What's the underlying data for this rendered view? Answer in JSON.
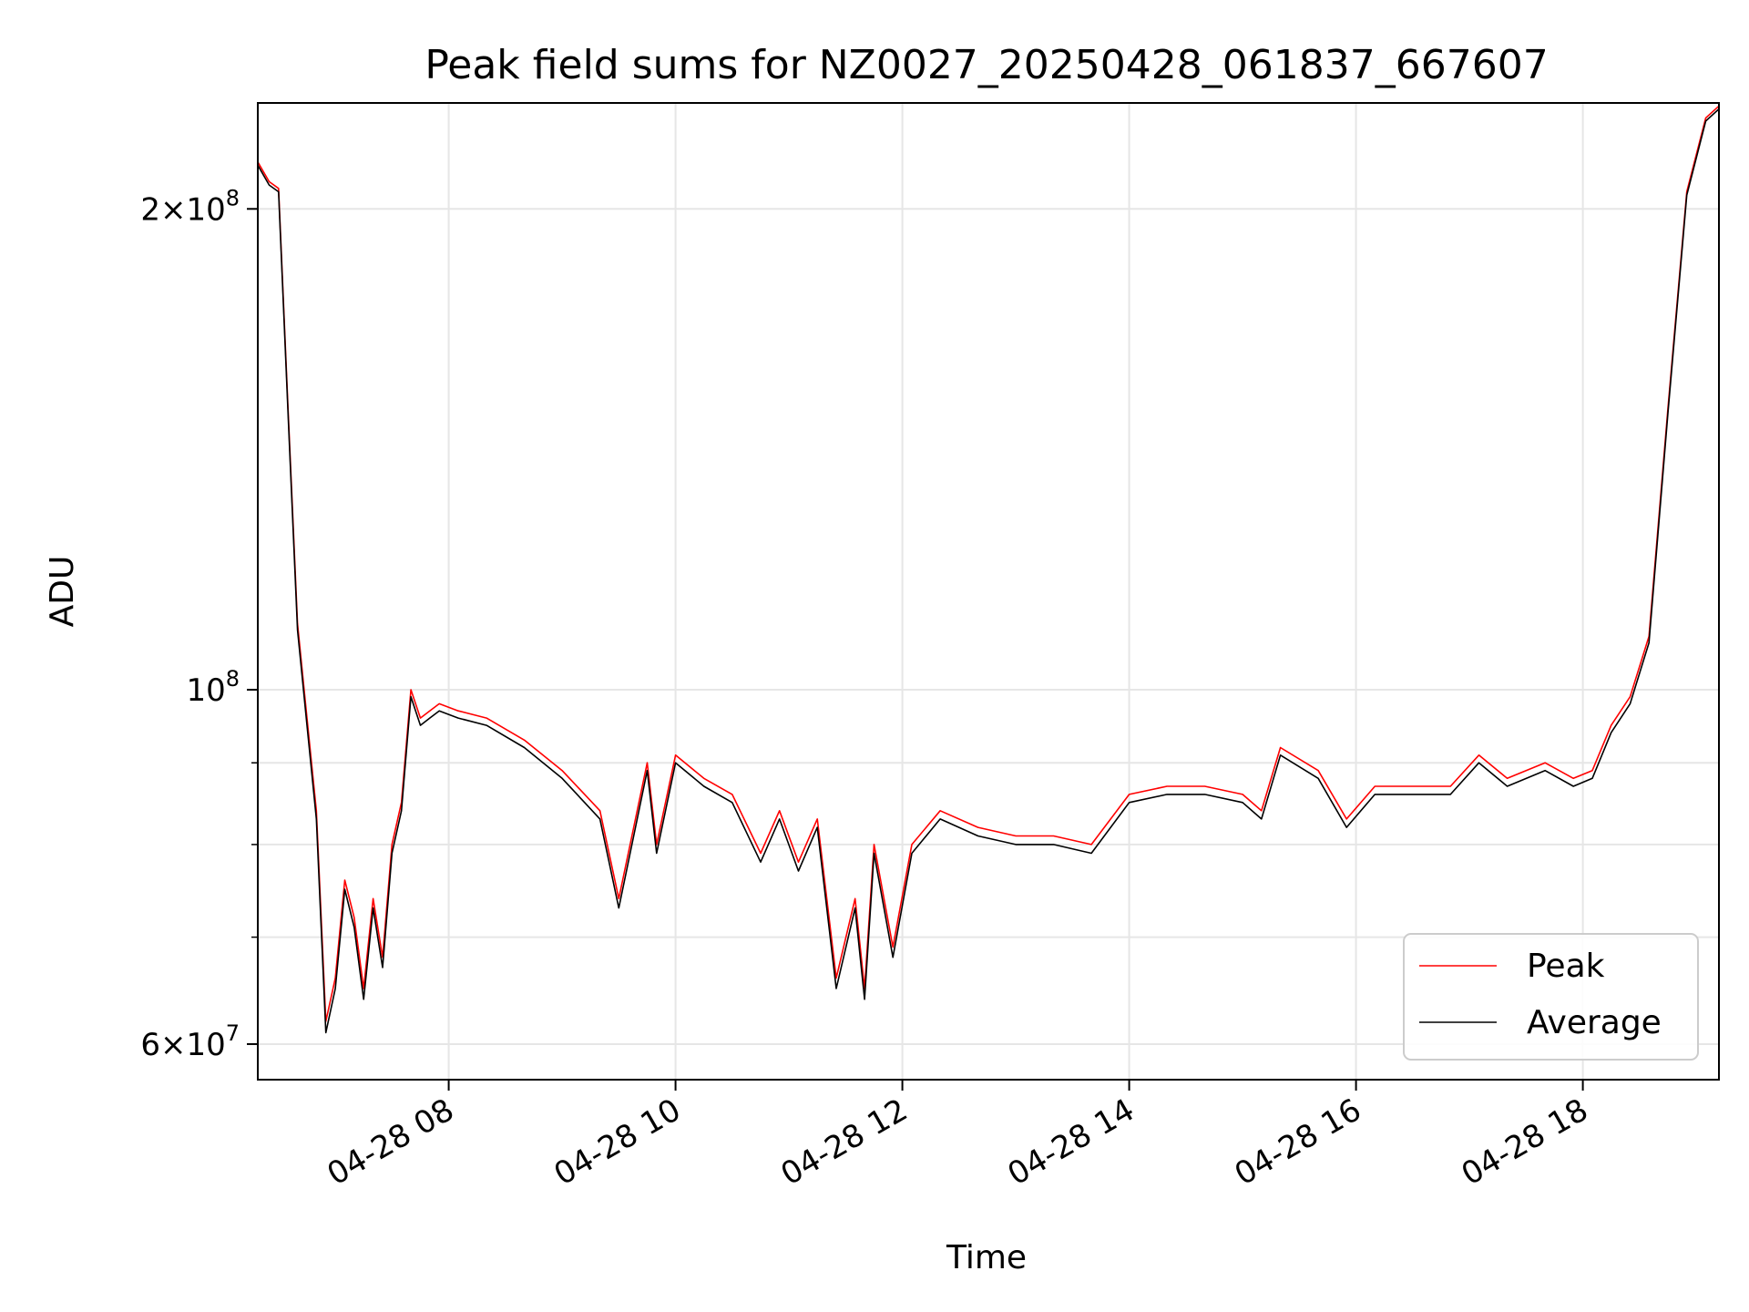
{
  "chart_data": {
    "type": "line",
    "title": "Peak field sums for NZ0027_20250428_061837_667607",
    "xlabel": "Time",
    "ylabel": "ADU",
    "yscale": "log",
    "grid": true,
    "legend_position": "lower-right",
    "x_range": [
      "04-28 06:19",
      "04-28 19:12"
    ],
    "ylim": [
      57000000,
      233000000
    ],
    "x_ticks": [
      "04-28 08",
      "04-28 10",
      "04-28 12",
      "04-28 14",
      "04-28 16",
      "04-28 18"
    ],
    "y_ticks": [
      {
        "value": 60000000,
        "mantissa": "6",
        "base": "10",
        "exp": "7"
      },
      {
        "value": 100000000,
        "mantissa": "",
        "base": "10",
        "exp": "8"
      },
      {
        "value": 200000000,
        "mantissa": "2",
        "base": "10",
        "exp": "8"
      }
    ],
    "y_minor_ticks": [
      70000000,
      80000000,
      90000000
    ],
    "series": [
      {
        "name": "Peak",
        "color": "#ff0000",
        "x": [
          "04-28 06:19",
          "04-28 06:25",
          "04-28 06:30",
          "04-28 06:35",
          "04-28 06:40",
          "04-28 06:45",
          "04-28 06:50",
          "04-28 06:55",
          "04-28 07:00",
          "04-28 07:05",
          "04-28 07:10",
          "04-28 07:15",
          "04-28 07:20",
          "04-28 07:25",
          "04-28 07:30",
          "04-28 07:35",
          "04-28 07:40",
          "04-28 07:45",
          "04-28 07:50",
          "04-28 07:55",
          "04-28 08:05",
          "04-28 08:20",
          "04-28 08:40",
          "04-28 09:00",
          "04-28 09:20",
          "04-28 09:30",
          "04-28 09:45",
          "04-28 09:50",
          "04-28 10:00",
          "04-28 10:15",
          "04-28 10:30",
          "04-28 10:45",
          "04-28 10:55",
          "04-28 11:05",
          "04-28 11:15",
          "04-28 11:25",
          "04-28 11:35",
          "04-28 11:40",
          "04-28 11:45",
          "04-28 11:55",
          "04-28 12:05",
          "04-28 12:20",
          "04-28 12:40",
          "04-28 13:00",
          "04-28 13:20",
          "04-28 13:40",
          "04-28 14:00",
          "04-28 14:20",
          "04-28 14:40",
          "04-28 15:00",
          "04-28 15:10",
          "04-28 15:20",
          "04-28 15:40",
          "04-28 15:55",
          "04-28 16:10",
          "04-28 16:30",
          "04-28 16:50",
          "04-28 17:05",
          "04-28 17:20",
          "04-28 17:40",
          "04-28 17:55",
          "04-28 18:05",
          "04-28 18:15",
          "04-28 18:25",
          "04-28 18:35",
          "04-28 18:45",
          "04-28 18:55",
          "04-28 19:05",
          "04-28 19:12"
        ],
        "values": [
          214000000,
          208000000,
          206000000,
          150000000,
          110000000,
          96000000,
          84000000,
          62000000,
          66000000,
          76000000,
          72000000,
          65000000,
          74000000,
          68000000,
          80000000,
          85000000,
          100000000,
          96000000,
          97000000,
          98000000,
          97000000,
          96000000,
          93000000,
          89000000,
          84000000,
          74000000,
          90000000,
          80000000,
          91000000,
          88000000,
          86000000,
          79000000,
          84000000,
          78000000,
          83000000,
          66000000,
          74000000,
          65000000,
          80000000,
          69000000,
          80000000,
          84000000,
          82000000,
          81000000,
          81000000,
          80000000,
          86000000,
          87000000,
          87000000,
          86000000,
          84000000,
          92000000,
          89000000,
          83000000,
          87000000,
          87000000,
          87000000,
          91000000,
          88000000,
          90000000,
          88000000,
          89000000,
          95000000,
          99000000,
          108000000,
          150000000,
          205000000,
          228000000,
          232000000
        ]
      },
      {
        "name": "Average",
        "color": "#000000",
        "x": [
          "04-28 06:19",
          "04-28 06:25",
          "04-28 06:30",
          "04-28 06:35",
          "04-28 06:40",
          "04-28 06:45",
          "04-28 06:50",
          "04-28 06:55",
          "04-28 07:00",
          "04-28 07:05",
          "04-28 07:10",
          "04-28 07:15",
          "04-28 07:20",
          "04-28 07:25",
          "04-28 07:30",
          "04-28 07:35",
          "04-28 07:40",
          "04-28 07:45",
          "04-28 07:50",
          "04-28 07:55",
          "04-28 08:05",
          "04-28 08:20",
          "04-28 08:40",
          "04-28 09:00",
          "04-28 09:20",
          "04-28 09:30",
          "04-28 09:45",
          "04-28 09:50",
          "04-28 10:00",
          "04-28 10:15",
          "04-28 10:30",
          "04-28 10:45",
          "04-28 10:55",
          "04-28 11:05",
          "04-28 11:15",
          "04-28 11:25",
          "04-28 11:35",
          "04-28 11:40",
          "04-28 11:45",
          "04-28 11:55",
          "04-28 12:05",
          "04-28 12:20",
          "04-28 12:40",
          "04-28 13:00",
          "04-28 13:20",
          "04-28 13:40",
          "04-28 14:00",
          "04-28 14:20",
          "04-28 14:40",
          "04-28 15:00",
          "04-28 15:10",
          "04-28 15:20",
          "04-28 15:40",
          "04-28 15:55",
          "04-28 16:10",
          "04-28 16:30",
          "04-28 16:50",
          "04-28 17:05",
          "04-28 17:20",
          "04-28 17:40",
          "04-28 17:55",
          "04-28 18:05",
          "04-28 18:15",
          "04-28 18:25",
          "04-28 18:35",
          "04-28 18:45",
          "04-28 18:55",
          "04-28 19:05",
          "04-28 19:12"
        ],
        "values": [
          213000000,
          207000000,
          205000000,
          149000000,
          109000000,
          95000000,
          83000000,
          61000000,
          65000000,
          75000000,
          71000000,
          64000000,
          73000000,
          67000000,
          79000000,
          84000000,
          99000000,
          95000000,
          96000000,
          97000000,
          96000000,
          95000000,
          92000000,
          88000000,
          83000000,
          73000000,
          89000000,
          79000000,
          90000000,
          87000000,
          85000000,
          78000000,
          83000000,
          77000000,
          82000000,
          65000000,
          73000000,
          64000000,
          79000000,
          68000000,
          79000000,
          83000000,
          81000000,
          80000000,
          80000000,
          79000000,
          85000000,
          86000000,
          86000000,
          85000000,
          83000000,
          91000000,
          88000000,
          82000000,
          86000000,
          86000000,
          86000000,
          90000000,
          87000000,
          89000000,
          87000000,
          88000000,
          94000000,
          98000000,
          107000000,
          149000000,
          204000000,
          227000000,
          231000000
        ]
      }
    ]
  }
}
